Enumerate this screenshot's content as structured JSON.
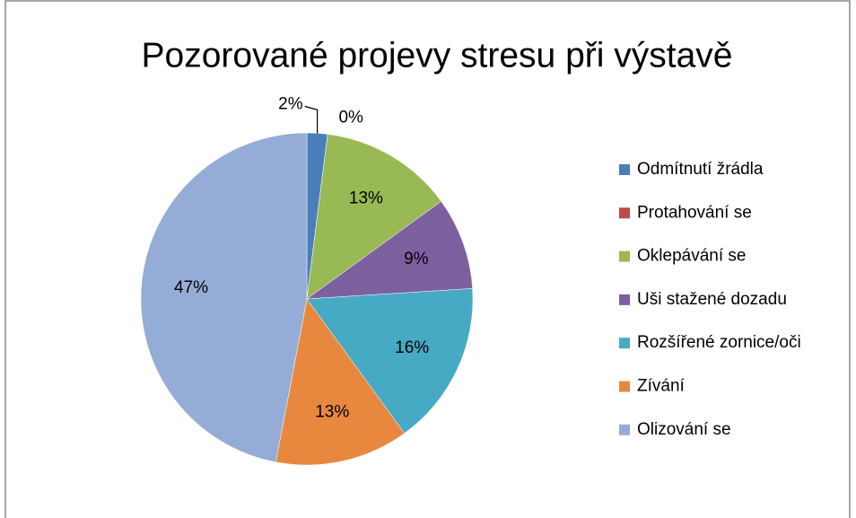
{
  "chart_data": {
    "type": "pie",
    "title": "Pozorované projevy stresu při výstavě",
    "categories": [
      "Odmítnutí žrádla",
      "Protahování se",
      "Oklepávání se",
      "Uši stažené dozadu",
      "Rozšířené zornice/oči",
      "Zívání",
      "Olizování se"
    ],
    "values": [
      2,
      0,
      13,
      9,
      16,
      13,
      47
    ],
    "value_labels": [
      "2%",
      "0%",
      "13%",
      "9%",
      "16%",
      "13%",
      "47%"
    ],
    "colors": [
      "#4a7ebb",
      "#be4b48",
      "#98b954",
      "#7d60a0",
      "#46aac4",
      "#e8883f",
      "#95acd6"
    ],
    "legend": "right"
  }
}
